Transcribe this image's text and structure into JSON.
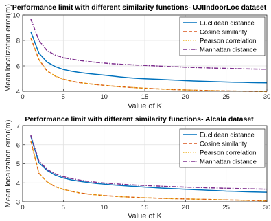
{
  "chart_data": [
    {
      "type": "line",
      "title": "Performance limit with different similarity functions- UJIIndoorLoc dataset",
      "xlabel": "Value of K",
      "ylabel": "",
      "xlim": [
        0,
        30
      ],
      "ylim": [
        4,
        10
      ],
      "xticks": [
        "0",
        "5",
        "10",
        "15",
        "20",
        "25",
        "30"
      ],
      "yticks": [
        "4",
        "6",
        "8",
        "10"
      ],
      "grid": true,
      "legend_position": "top-right",
      "legend": [
        "Euclidean distance",
        "Cosine similarity",
        "Pearson correlation",
        "Manhattan distance"
      ],
      "colors": [
        "#0072bd",
        "#d95319",
        "#edb120",
        "#7e2f8e"
      ],
      "x": [
        1,
        2,
        3,
        4,
        5,
        6,
        7,
        8,
        9,
        10,
        11,
        12,
        13,
        14,
        15,
        16,
        17,
        18,
        19,
        20,
        21,
        22,
        23,
        24,
        25,
        26,
        27,
        28,
        29,
        30
      ],
      "series": [
        {
          "name": "Euclidean distance",
          "style": "solid",
          "values": [
            8.7,
            7.0,
            6.3,
            5.95,
            5.72,
            5.58,
            5.48,
            5.4,
            5.33,
            5.27,
            5.2,
            5.13,
            5.07,
            5.02,
            4.99,
            4.96,
            4.93,
            4.9,
            4.87,
            4.84,
            4.81,
            4.79,
            4.77,
            4.75,
            4.73,
            4.71,
            4.7,
            4.68,
            4.67,
            4.66
          ]
        },
        {
          "name": "Cosine similarity",
          "style": "dash",
          "values": [
            8.2,
            6.5,
            5.6,
            5.2,
            4.95,
            4.8,
            4.68,
            4.6,
            4.53,
            4.47,
            4.41,
            4.36,
            4.32,
            4.28,
            4.24,
            4.21,
            4.18,
            4.15,
            4.13,
            4.11,
            4.09,
            4.07,
            4.06,
            4.04,
            4.03,
            4.02,
            4.01,
            4.0,
            3.99,
            3.98
          ]
        },
        {
          "name": "Pearson correlation",
          "style": "dot",
          "values": [
            8.2,
            6.5,
            5.6,
            5.2,
            4.95,
            4.8,
            4.68,
            4.6,
            4.53,
            4.47,
            4.41,
            4.36,
            4.32,
            4.28,
            4.24,
            4.21,
            4.18,
            4.15,
            4.13,
            4.11,
            4.09,
            4.07,
            4.06,
            4.04,
            4.03,
            4.02,
            4.01,
            4.0,
            3.99,
            3.98
          ]
        },
        {
          "name": "Manhattan distance",
          "style": "dashdot",
          "values": [
            9.7,
            8.0,
            7.2,
            6.85,
            6.65,
            6.53,
            6.43,
            6.35,
            6.28,
            6.22,
            6.17,
            6.13,
            6.1,
            6.07,
            6.04,
            6.01,
            5.98,
            5.95,
            5.93,
            5.9,
            5.88,
            5.86,
            5.84,
            5.82,
            5.81,
            5.79,
            5.78,
            5.76,
            5.75,
            5.74
          ]
        }
      ]
    },
    {
      "type": "line",
      "title": "Performance limit with different similarity functions- Alcala dataset",
      "xlabel": "Value of K",
      "ylabel": "Mean localization error(m)",
      "xlim": [
        0,
        30
      ],
      "ylim": [
        3,
        7
      ],
      "xticks": [
        "0",
        "5",
        "10",
        "15",
        "20",
        "25",
        "30"
      ],
      "yticks": [
        "3",
        "4",
        "5",
        "6",
        "7"
      ],
      "grid": true,
      "legend_position": "top-right",
      "legend": [
        "Euclidean distance",
        "Cosine similarity",
        "Pearson correlation",
        "Manhattan distance"
      ],
      "colors": [
        "#0072bd",
        "#d95319",
        "#edb120",
        "#7e2f8e"
      ],
      "x": [
        1,
        2,
        3,
        4,
        5,
        6,
        7,
        8,
        9,
        10,
        11,
        12,
        13,
        14,
        15,
        16,
        17,
        18,
        19,
        20,
        21,
        22,
        23,
        24,
        25,
        26,
        27,
        28,
        29,
        30
      ],
      "series": [
        {
          "name": "Euclidean distance",
          "style": "solid",
          "values": [
            6.45,
            5.05,
            4.65,
            4.4,
            4.25,
            4.15,
            4.08,
            4.02,
            3.97,
            3.93,
            3.89,
            3.86,
            3.83,
            3.8,
            3.77,
            3.75,
            3.72,
            3.7,
            3.68,
            3.66,
            3.64,
            3.62,
            3.6,
            3.58,
            3.56,
            3.55,
            3.53,
            3.52,
            3.51,
            3.5
          ]
        },
        {
          "name": "Cosine similarity",
          "style": "dash",
          "values": [
            6.2,
            4.5,
            4.05,
            3.8,
            3.65,
            3.55,
            3.47,
            3.41,
            3.37,
            3.33,
            3.3,
            3.27,
            3.25,
            3.23,
            3.21,
            3.2,
            3.18,
            3.17,
            3.16,
            3.15,
            3.14,
            3.13,
            3.12,
            3.11,
            3.1,
            3.09,
            3.08,
            3.07,
            3.06,
            3.05
          ]
        },
        {
          "name": "Pearson correlation",
          "style": "dot",
          "values": [
            6.2,
            4.5,
            4.05,
            3.8,
            3.65,
            3.55,
            3.47,
            3.41,
            3.37,
            3.33,
            3.3,
            3.27,
            3.25,
            3.23,
            3.21,
            3.2,
            3.18,
            3.17,
            3.16,
            3.15,
            3.14,
            3.13,
            3.12,
            3.11,
            3.1,
            3.09,
            3.08,
            3.07,
            3.06,
            3.05
          ]
        },
        {
          "name": "Manhattan distance",
          "style": "dashdot",
          "values": [
            6.5,
            5.15,
            4.7,
            4.47,
            4.32,
            4.22,
            4.14,
            4.08,
            4.03,
            3.99,
            3.96,
            3.93,
            3.9,
            3.88,
            3.86,
            3.84,
            3.82,
            3.8,
            3.79,
            3.77,
            3.76,
            3.75,
            3.73,
            3.72,
            3.71,
            3.7,
            3.69,
            3.68,
            3.67,
            3.66
          ]
        }
      ]
    }
  ],
  "shared_ylabel": "Mean localization error(m)"
}
